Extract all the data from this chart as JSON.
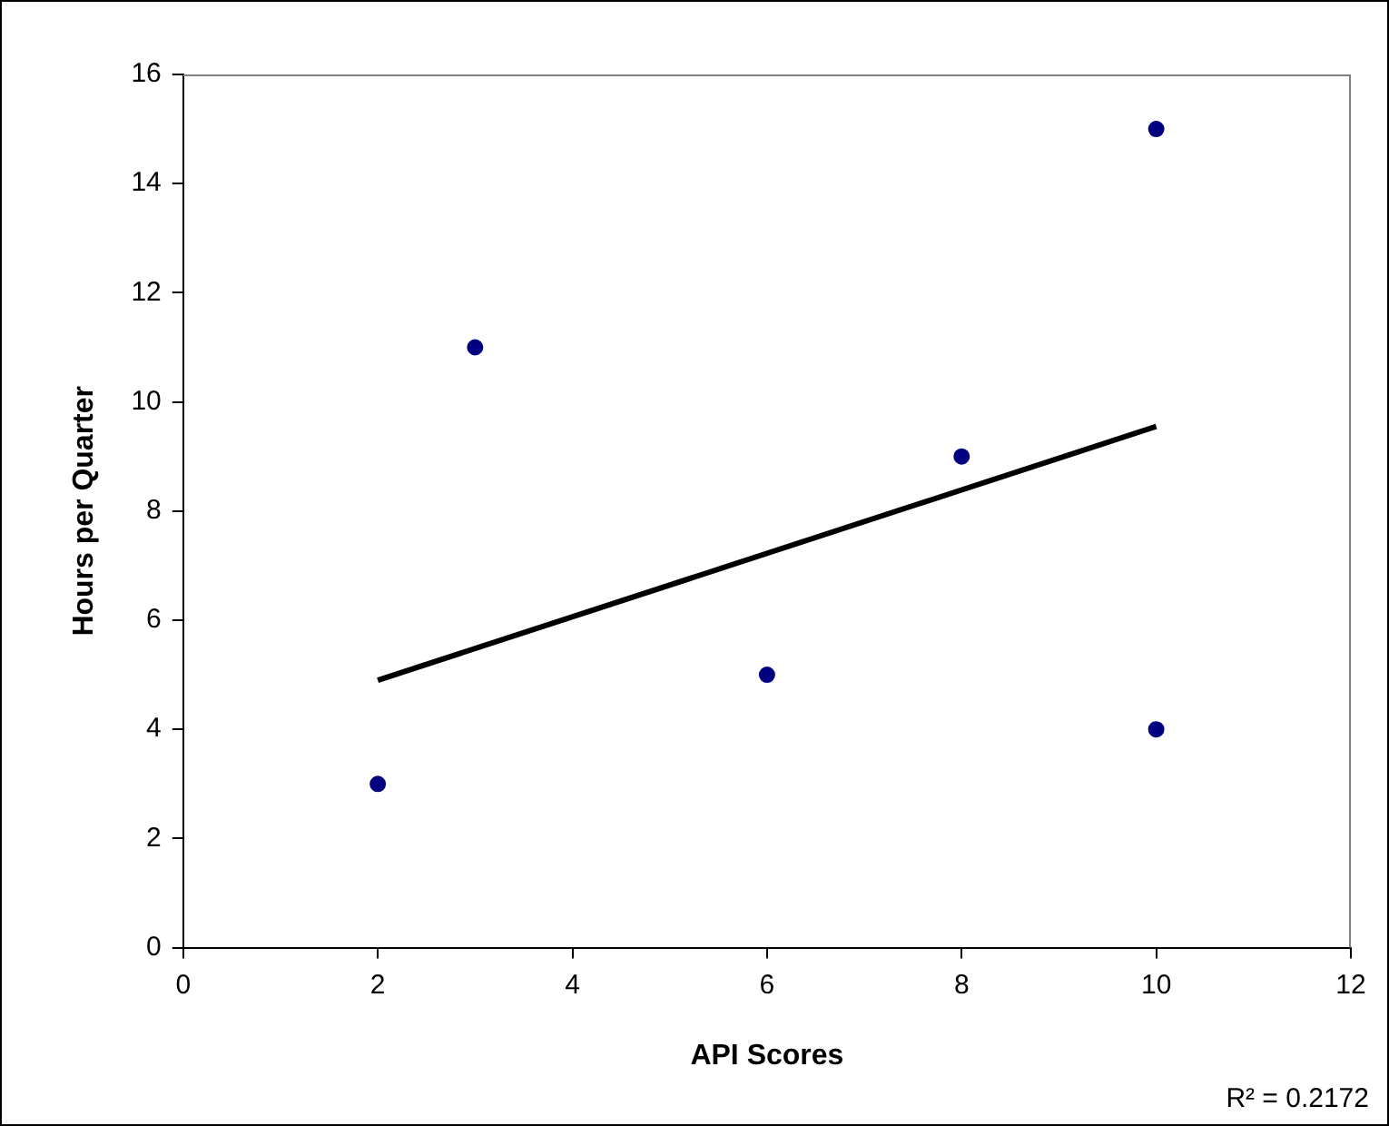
{
  "chart_data": {
    "type": "scatter",
    "xlabel": "API Scores",
    "ylabel": "Hours per Quarter",
    "marker": "circle",
    "series": [
      {
        "color": "#000080",
        "x": [
          2,
          3,
          6,
          8,
          10,
          10
        ],
        "values": [
          3,
          11,
          5,
          9,
          15,
          4
        ]
      },
      {
        "type": "line",
        "color": "#000000",
        "x": [
          2,
          10
        ],
        "values": [
          4.9,
          9.55
        ],
        "marker": "none"
      }
    ],
    "xlim": [
      0,
      12
    ],
    "xticks": [
      0,
      2,
      4,
      6,
      8,
      10,
      12
    ],
    "ylim": [
      0,
      16
    ],
    "yticks": [
      0,
      2,
      4,
      6,
      8,
      10,
      12,
      14,
      16
    ],
    "annotations": [
      "R² = 0.2172"
    ]
  }
}
